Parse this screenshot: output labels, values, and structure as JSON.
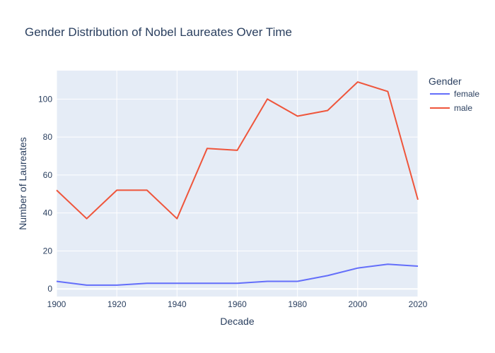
{
  "chart_data": {
    "type": "line",
    "title": "Gender Distribution of Nobel Laureates Over Time",
    "xlabel": "Decade",
    "ylabel": "Number of Laureates",
    "legend_title": "Gender",
    "legend_position": "right",
    "x": [
      1900,
      1910,
      1920,
      1930,
      1940,
      1950,
      1960,
      1970,
      1980,
      1990,
      2000,
      2010,
      2020
    ],
    "xlim": [
      1900,
      2020
    ],
    "ylim": [
      -4,
      115
    ],
    "xticks": [
      1900,
      1920,
      1940,
      1960,
      1980,
      2000,
      2020
    ],
    "yticks": [
      0,
      20,
      40,
      60,
      80,
      100
    ],
    "grid": true,
    "series": [
      {
        "name": "female",
        "color": "#636efa",
        "values": [
          4,
          2,
          2,
          3,
          3,
          3,
          3,
          4,
          4,
          7,
          11,
          13,
          12
        ]
      },
      {
        "name": "male",
        "color": "#ef553b",
        "values": [
          52,
          37,
          52,
          52,
          37,
          74,
          73,
          100,
          91,
          94,
          109,
          104,
          47
        ]
      }
    ]
  }
}
